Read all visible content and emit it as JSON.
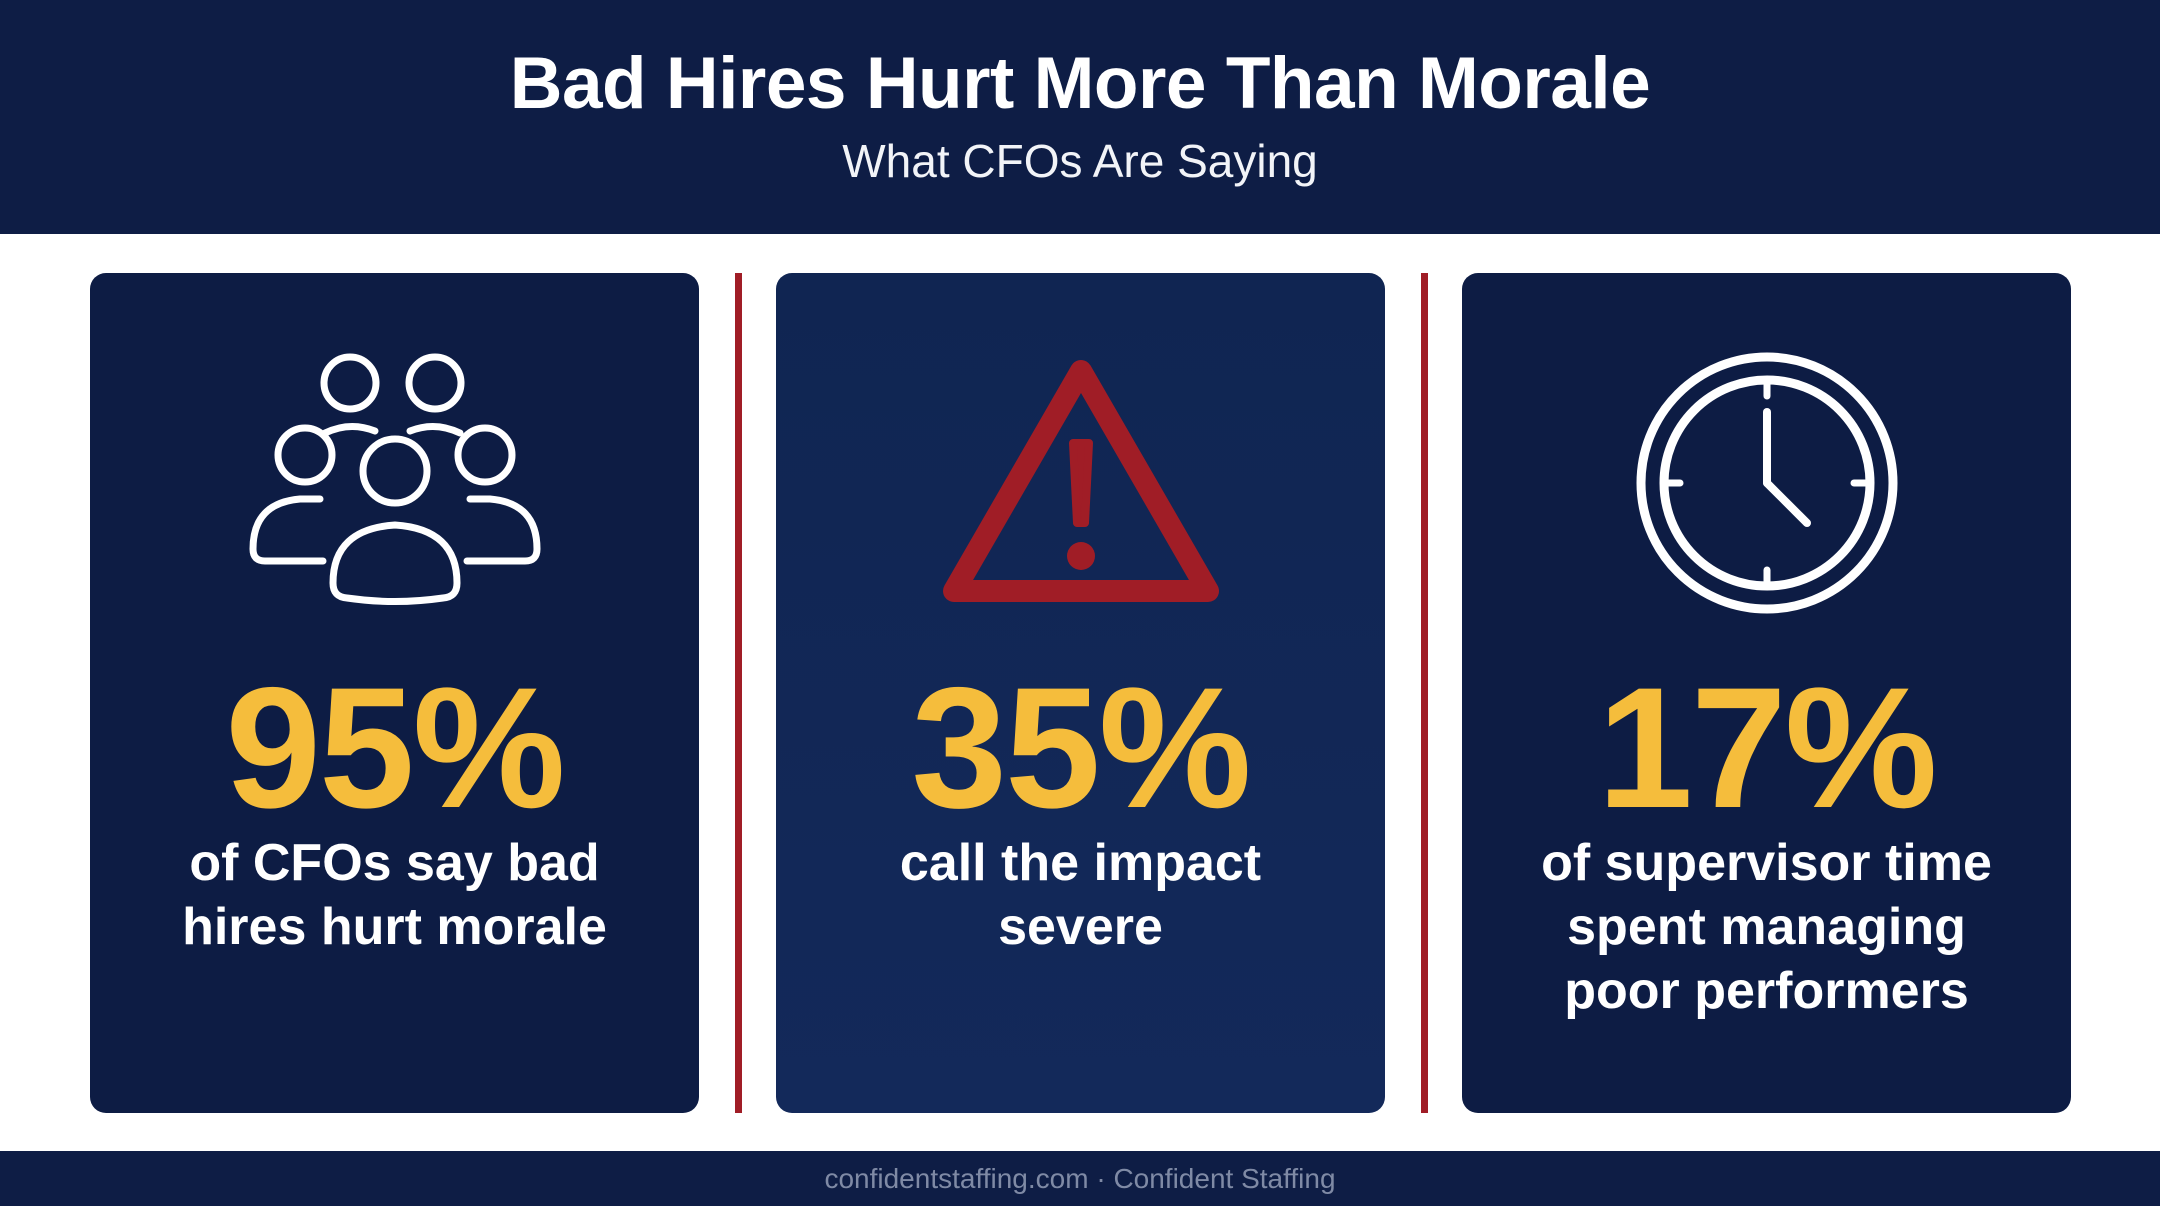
{
  "header": {
    "title": "Bad Hires Hurt More Than Morale",
    "subtitle": "What CFOs Are Saying"
  },
  "cards": [
    {
      "icon": "people-group-icon",
      "stat": "95%",
      "line1": "of CFOs say bad",
      "line2": "hires hurt morale",
      "line3": ""
    },
    {
      "icon": "warning-triangle-icon",
      "stat": "35%",
      "line1": "call the impact",
      "line2": "severe",
      "line3": ""
    },
    {
      "icon": "clock-icon",
      "stat": "17%",
      "line1": "of supervisor time",
      "line2": "spent managing",
      "line3": "poor performers"
    }
  ],
  "footer": {
    "text": "confidentstaffing.com · Confident Staffing"
  },
  "colors": {
    "navy": "#0e1d45",
    "accent_gold": "#f5bd3c",
    "accent_red": "#a01d26",
    "white": "#ffffff"
  }
}
